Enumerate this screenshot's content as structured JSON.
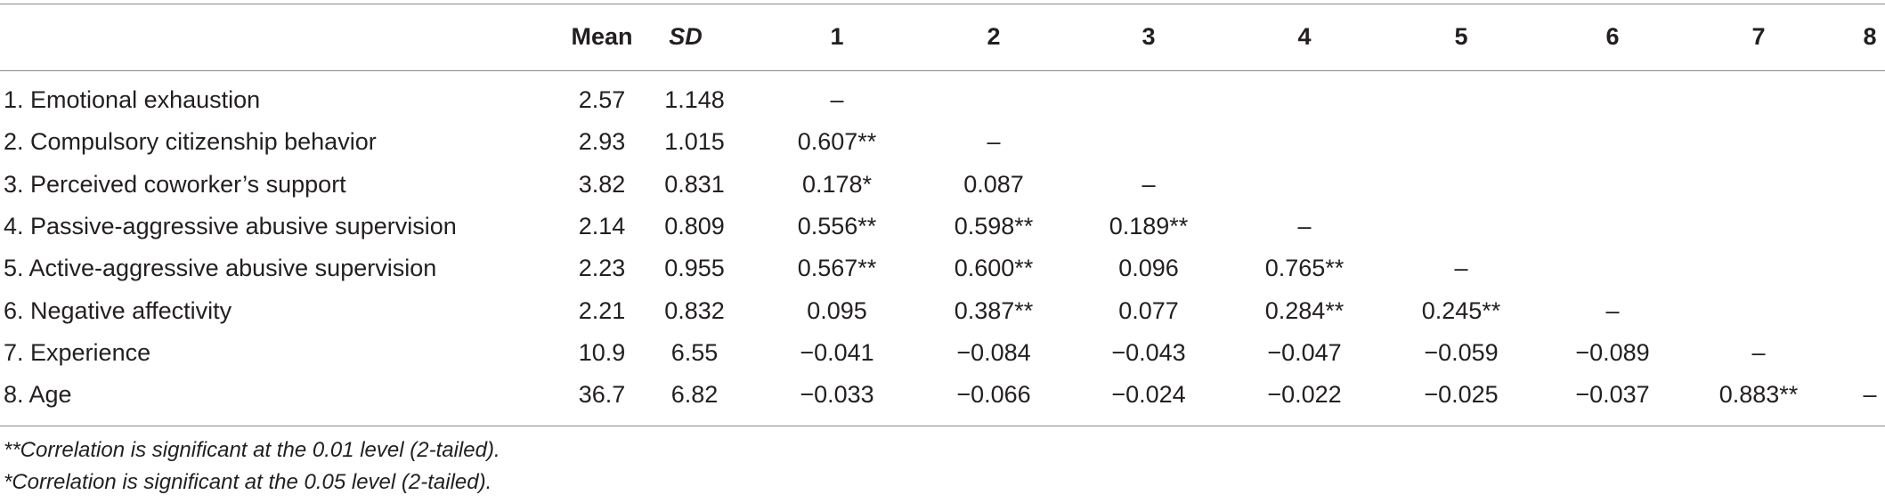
{
  "table": {
    "header": {
      "mean": "Mean",
      "sd": "SD",
      "cols": [
        "1",
        "2",
        "3",
        "4",
        "5",
        "6",
        "7",
        "8"
      ]
    },
    "rows": [
      {
        "label": "1. Emotional exhaustion",
        "mean": "2.57",
        "sd": "1.148",
        "cells": [
          "–",
          "",
          "",
          "",
          "",
          "",
          "",
          ""
        ]
      },
      {
        "label": "2. Compulsory citizenship behavior",
        "mean": "2.93",
        "sd": "1.015",
        "cells": [
          "0.607**",
          "–",
          "",
          "",
          "",
          "",
          "",
          ""
        ]
      },
      {
        "label": "3. Perceived coworker’s support",
        "mean": "3.82",
        "sd": "0.831",
        "cells": [
          "0.178*",
          "0.087",
          "–",
          "",
          "",
          "",
          "",
          ""
        ]
      },
      {
        "label": "4. Passive-aggressive abusive supervision",
        "mean": "2.14",
        "sd": "0.809",
        "cells": [
          "0.556**",
          "0.598**",
          "0.189**",
          "–",
          "",
          "",
          "",
          ""
        ]
      },
      {
        "label": "5. Active-aggressive abusive supervision",
        "mean": "2.23",
        "sd": "0.955",
        "cells": [
          "0.567**",
          "0.600**",
          "0.096",
          "0.765**",
          "–",
          "",
          "",
          ""
        ]
      },
      {
        "label": "6. Negative affectivity",
        "mean": "2.21",
        "sd": "0.832",
        "cells": [
          "0.095",
          "0.387**",
          "0.077",
          "0.284**",
          "0.245**",
          "–",
          "",
          ""
        ]
      },
      {
        "label": "7. Experience",
        "mean": "10.9",
        "sd": "6.55",
        "cells": [
          "−0.041",
          "−0.084",
          "−0.043",
          "−0.047",
          "−0.059",
          "−0.089",
          "–",
          ""
        ]
      },
      {
        "label": "8. Age",
        "mean": "36.7",
        "sd": "6.82",
        "cells": [
          "−0.033",
          "−0.066",
          "−0.024",
          "−0.022",
          "−0.025",
          "−0.037",
          "0.883**",
          "–"
        ]
      }
    ],
    "notes": [
      "**Correlation is significant at the 0.01 level (2-tailed).",
      "*Correlation is significant at the 0.05 level (2-tailed)."
    ]
  }
}
